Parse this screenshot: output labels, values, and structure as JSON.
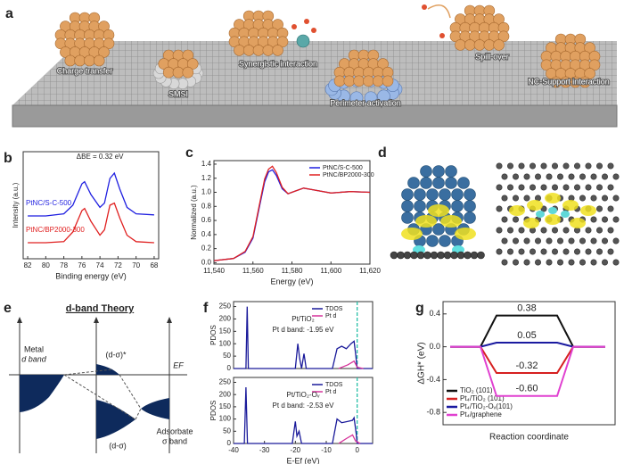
{
  "panel_labels": [
    "a",
    "b",
    "c",
    "d",
    "e",
    "f",
    "g"
  ],
  "illustration": {
    "labels": [
      "Charge transfer",
      "SMSI",
      "Synergistic interaction",
      "Perimeter activation",
      "Spill-over",
      "NC-Support interaction"
    ]
  },
  "diagram": {
    "title": "d-band Theory",
    "metal": [
      "Metal",
      "d band"
    ],
    "antibonding": "(d-σ)*",
    "fermi": "EF",
    "bonding": "(d-σ)",
    "adsorbate": [
      "Adsorbate",
      "σ band"
    ]
  },
  "chart_data": [
    {
      "type": "line",
      "ylabel": "Intensity (a.u.)",
      "xlabel": "Binding energy (eV)",
      "annotation": "ΔBE = 0.32 eV",
      "x": [
        82,
        80,
        78,
        77,
        76,
        75.7,
        75,
        74,
        73.5,
        72.9,
        72.4,
        71.8,
        71,
        70,
        68
      ],
      "series": [
        {
          "name": "PtNC/S-C-500",
          "color": "#1f1fe0",
          "values": [
            40,
            40,
            42,
            50,
            70,
            72,
            60,
            48,
            52,
            75,
            80,
            65,
            48,
            42,
            41
          ]
        },
        {
          "name": "PtNC/BP2000-300",
          "color": "#e02020",
          "values": [
            15,
            15,
            16,
            25,
            45,
            47,
            35,
            22,
            27,
            50,
            52,
            38,
            22,
            16,
            15
          ]
        }
      ],
      "xlim": [
        82.5,
        67.5
      ],
      "xticks": [
        82,
        80,
        78,
        76,
        74,
        72,
        70,
        68
      ],
      "ylim": [
        0,
        100
      ],
      "legend": "left"
    },
    {
      "type": "line",
      "ylabel": "Normalized (a.u.)",
      "xlabel": "Energy (eV)",
      "x": [
        11540,
        11550,
        11556,
        11560,
        11563,
        11566,
        11568,
        11570,
        11572,
        11575,
        11578,
        11582,
        11586,
        11590,
        11600,
        11610,
        11620
      ],
      "series": [
        {
          "name": "PtNC/S-C-500",
          "color": "#1f1fe0",
          "values": [
            0.03,
            0.06,
            0.15,
            0.35,
            0.75,
            1.15,
            1.29,
            1.32,
            1.24,
            1.05,
            0.98,
            1.02,
            1.06,
            1.04,
            0.99,
            1.01,
            1.0
          ]
        },
        {
          "name": "PtNC/BP2000-300",
          "color": "#e02020",
          "values": [
            0.03,
            0.06,
            0.16,
            0.37,
            0.78,
            1.19,
            1.33,
            1.37,
            1.28,
            1.07,
            0.98,
            1.02,
            1.06,
            1.04,
            0.99,
            1.01,
            1.0
          ]
        }
      ],
      "xlim": [
        11540,
        11620
      ],
      "xticks": [
        {
          "value": 11540,
          "label": "11,540"
        },
        {
          "value": 11560,
          "label": "11,560"
        },
        {
          "value": 11580,
          "label": "11,580"
        },
        {
          "value": 11600,
          "label": "11,600"
        },
        {
          "value": 11620,
          "label": "11,620"
        }
      ],
      "ylim": [
        -0.02,
        1.45
      ],
      "yticks": [
        {
          "value": 0,
          "label": "0.0"
        },
        0.2,
        0.4,
        0.6,
        0.8,
        {
          "value": 1,
          "label": "1.0"
        },
        1.2,
        1.4
      ],
      "legend": "upper right"
    },
    {
      "type": "line",
      "ylabel": "PDOS",
      "annotations": [
        "Pt/TiO₂",
        "Pt d band: -1.95 eV"
      ],
      "series": [
        {
          "name": "TDOS",
          "color": "#1a1a9a",
          "x": [
            -40,
            -36,
            -35.6,
            -35.2,
            -34,
            -20,
            -19.2,
            -18.6,
            -18,
            -17.2,
            -16.5,
            -8,
            -6.5,
            -5,
            -3.5,
            -2,
            -1,
            -0.5,
            0,
            5
          ],
          "values": [
            0,
            0,
            250,
            0,
            0,
            0,
            100,
            40,
            0,
            60,
            0,
            0,
            80,
            90,
            80,
            100,
            110,
            60,
            0,
            0
          ]
        },
        {
          "name": "Pt d",
          "color": "#d6339a",
          "x": [
            -6,
            -3,
            -1,
            0,
            2
          ],
          "values": [
            0,
            15,
            30,
            5,
            0
          ]
        }
      ],
      "xlim": [
        -40,
        5
      ],
      "ylim": [
        0,
        270
      ],
      "yticks": [
        0,
        50,
        100,
        150,
        200,
        250
      ],
      "legend": "upper right"
    },
    {
      "type": "line",
      "ylabel": "PDOS",
      "xlabel": "E-Ef (eV)",
      "annotations": [
        "Pt/TiO₂-Oᵥ",
        "Pt d band: -2.53 eV"
      ],
      "series": [
        {
          "name": "TDOS",
          "color": "#1a1a9a",
          "x": [
            -40,
            -36.5,
            -36,
            -35.5,
            -34,
            -21,
            -20,
            -19.5,
            -18.8,
            -18,
            -8,
            -6.5,
            -5,
            -3,
            -1.5,
            -1,
            -0.3,
            0,
            5
          ],
          "values": [
            0,
            0,
            230,
            0,
            0,
            0,
            90,
            30,
            50,
            0,
            0,
            100,
            85,
            90,
            95,
            105,
            40,
            0,
            0
          ]
        },
        {
          "name": "Pt d",
          "color": "#d6339a",
          "x": [
            -6,
            -3.5,
            -1.5,
            -0.5,
            1
          ],
          "values": [
            0,
            20,
            35,
            10,
            0
          ]
        }
      ],
      "xlim": [
        -40,
        5
      ],
      "xticks": [
        -40,
        -30,
        -20,
        -10,
        0
      ],
      "ylim": [
        0,
        270
      ],
      "yticks": [
        0,
        50,
        100,
        150,
        200,
        250
      ],
      "legend": "upper right"
    },
    {
      "type": "energy_levels",
      "ylabel": "ΔGH* (eV)",
      "xlabel": "Reaction coordinate",
      "series": [
        {
          "name": "TiO₂ (101)",
          "color": "#111111",
          "value": 0.38
        },
        {
          "name": "Pt₄/TiO₂ (101)",
          "color": "#d62020",
          "value": -0.32
        },
        {
          "name": "Pt₄/TiO₂-Oᵥ(101)",
          "color": "#1a1aa0",
          "value": 0.05
        },
        {
          "name": "Pt₄/graphene",
          "color": "#e040d0",
          "value": -0.6,
          "value_label": "-0.60"
        }
      ],
      "ylim": [
        -0.95,
        0.55
      ],
      "yticks": [
        0.4,
        {
          "value": 0,
          "label": "0.0"
        },
        -0.4,
        -0.8
      ],
      "legend": "lower left"
    }
  ]
}
